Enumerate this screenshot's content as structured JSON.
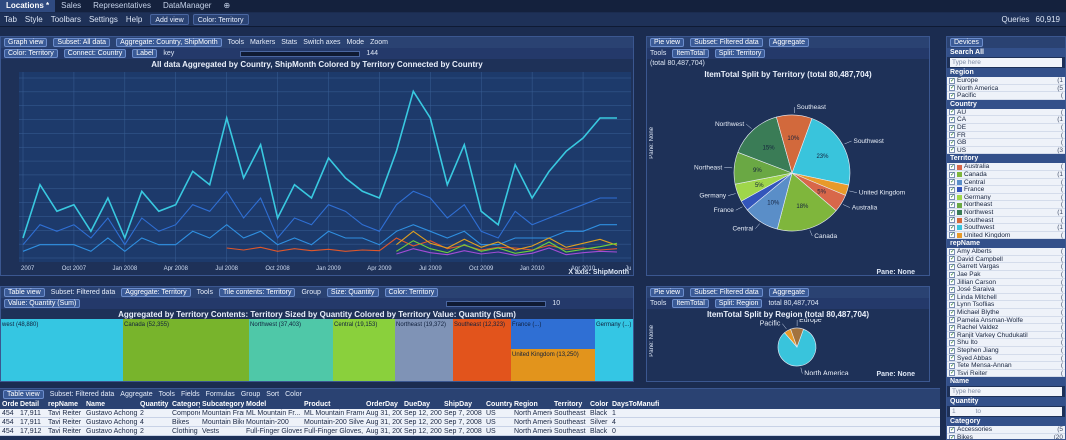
{
  "tabs": [
    {
      "label": "Locations *",
      "active": true
    },
    {
      "label": "Sales",
      "active": false
    },
    {
      "label": "Representatives",
      "active": false
    },
    {
      "label": "DataManager",
      "active": false
    }
  ],
  "menu": {
    "items": [
      "Tab",
      "Style",
      "Toolbars",
      "Settings",
      "Help"
    ],
    "add_view": "Add view",
    "color": "Color: Territory",
    "queries": "Queries",
    "queries_value": "60,919"
  },
  "graph": {
    "title": "Graph view",
    "subset": "Subset: All data",
    "aggregate": "Aggregate: Country, ShipMonth",
    "tools": [
      "Tools",
      "Markers",
      "Stats",
      "Switch axes",
      "Mode",
      "Zoom"
    ],
    "color": "Color: Territory",
    "connect": "Connect: Country",
    "label": "Label",
    "key": "key",
    "slider_value": "144",
    "header": "All data    Aggregated by Country, ShipMonth    Colored by Territory    Connected by Country",
    "x_axis_label": "X axis: ShipMonth",
    "x_ticks": [
      "Jul 2007",
      "Oct 2007",
      "Jan 2008",
      "Apr 2008",
      "Jul 2008",
      "Oct 2008",
      "Jan 2009",
      "Apr 2009",
      "Jul 2009",
      "Oct 2009",
      "Jan 2010",
      "Apr 2010",
      "Jul 2..."
    ]
  },
  "chart_data": [
    {
      "type": "line",
      "x": [
        "Jul 2007",
        "Aug 2007",
        "Sep 2007",
        "Oct 2007",
        "Nov 2007",
        "Dec 2007",
        "Jan 2008",
        "Feb 2008",
        "Mar 2008",
        "Apr 2008",
        "May 2008",
        "Jun 2008",
        "Jul 2008",
        "Aug 2008",
        "Sep 2008",
        "Oct 2008",
        "Nov 2008",
        "Dec 2008",
        "Jan 2009",
        "Feb 2009",
        "Mar 2009",
        "Apr 2009",
        "May 2009",
        "Jun 2009",
        "Jul 2009",
        "Aug 2009",
        "Sep 2009",
        "Oct 2009",
        "Nov 2009",
        "Dec 2009",
        "Jan 2010",
        "Feb 2010",
        "Mar 2010",
        "Apr 2010",
        "May 2010",
        "Jun 2010"
      ],
      "series": [
        {
          "color": "#39c9e0",
          "values": [
            3,
            11,
            7,
            8,
            4,
            9,
            3,
            10,
            7,
            8,
            13,
            11,
            21,
            12,
            17,
            6,
            11,
            9,
            15,
            12,
            10,
            9,
            16,
            25,
            21,
            11,
            17,
            7,
            5,
            14,
            9,
            13,
            16,
            18,
            21,
            21
          ]
        },
        {
          "color": "#2f6fd4",
          "values": [
            2,
            5,
            4,
            5,
            3,
            6,
            2,
            6,
            4,
            5,
            8,
            7,
            10,
            6,
            9,
            3,
            6,
            5,
            8,
            7,
            5,
            4,
            8,
            10,
            9,
            6,
            8,
            4,
            3,
            7,
            5,
            6,
            7,
            8,
            9,
            9
          ]
        },
        {
          "color": "#2f8fe0",
          "values": [
            1,
            2,
            2,
            2,
            1,
            3,
            1,
            3,
            2,
            2,
            4,
            3,
            5,
            3,
            4,
            2,
            3,
            2,
            4,
            3,
            3,
            2,
            4,
            5,
            4,
            3,
            4,
            2,
            2,
            3,
            3,
            3,
            4,
            4,
            5,
            5
          ]
        },
        {
          "color": "#e0572a",
          "values": [
            0,
            0,
            0,
            0,
            0,
            0,
            0,
            0,
            0,
            0,
            0,
            0,
            1.5,
            1.2,
            1.6,
            1.0,
            1.4,
            1.1,
            1.3,
            1.0,
            1.2,
            1.1,
            3.0,
            1.8,
            2.6,
            1.4,
            1.9,
            1.2,
            1.6,
            1.5,
            1.2,
            1.9,
            1.3,
            1.5,
            1.2,
            1.4
          ]
        },
        {
          "color": "#e0a020",
          "values": [
            0,
            0,
            0,
            0,
            0,
            0,
            0,
            0,
            0,
            0,
            0,
            0,
            0,
            0,
            0,
            0,
            0,
            0,
            0,
            0,
            0,
            0,
            2.0,
            4.0,
            2.2,
            1.5,
            2.8,
            1.6,
            2.4,
            1.2,
            1.8,
            3.0,
            1.6,
            2.2,
            2.8,
            1.9
          ]
        },
        {
          "color": "#6fd03a",
          "values": [
            0,
            0,
            0,
            0,
            0,
            0,
            0,
            0,
            0,
            0,
            0,
            0,
            0,
            0,
            0,
            0,
            0,
            0,
            0,
            0,
            0,
            0,
            1.0,
            2.6,
            1.4,
            0.8,
            2.0,
            1.0,
            1.5,
            0.7,
            1.1,
            2.4,
            0.9,
            1.3,
            1.7,
            2.2
          ]
        },
        {
          "color": "#a34cd6",
          "values": [
            0,
            0,
            0,
            0,
            0,
            0,
            0,
            0,
            0,
            0,
            0,
            0,
            0,
            0,
            0,
            0,
            0,
            0,
            0,
            0,
            0,
            0,
            0.6,
            1.4,
            0.8,
            0.5,
            1.1,
            0.6,
            0.9,
            0.4,
            0.7,
            1.5,
            0.5,
            0.8,
            1.0,
            0.9
          ]
        }
      ],
      "title": "All data    Aggregated by Country, ShipMonth    Colored by Territory    Connected by Country",
      "xlabel": "X axis: ShipMonth"
    },
    {
      "type": "pie",
      "title": "ItemTotal    Split by Territory (total 80,487,704)",
      "slices": [
        {
          "label": "Southwest",
          "value": 23,
          "color": "#39c4dc"
        },
        {
          "label": "United Kingdom",
          "value": 3,
          "color": "#e89a2a"
        },
        {
          "label": "Australia",
          "value": 5,
          "color": "#d8674a"
        },
        {
          "label": "Canada",
          "value": 18,
          "color": "#7fb63c"
        },
        {
          "label": "Central",
          "value": 10,
          "color": "#5a8ec8"
        },
        {
          "label": "France",
          "value": 3,
          "color": "#3355bb"
        },
        {
          "label": "Germany",
          "value": 5,
          "color": "#9fd64a"
        },
        {
          "label": "Northeast",
          "value": 9,
          "color": "#6aa844"
        },
        {
          "label": "Northwest",
          "value": 15,
          "color": "#3a7c56"
        },
        {
          "label": "Southeast",
          "value": 10,
          "color": "#d2693c"
        }
      ]
    },
    {
      "type": "pie",
      "title": "ItemTotal    Split by Region (total 80,487,704)",
      "slices": [
        {
          "label": "North America",
          "value": 83,
          "color": "#39c4dc"
        },
        {
          "label": "Pacific",
          "value": 6,
          "color": "#e89a2a"
        },
        {
          "label": "Europe",
          "value": 11,
          "color": "#a3733e"
        }
      ]
    }
  ],
  "pie1": {
    "title": "Pie view",
    "subset": "Subset: Filtered data",
    "aggregate": "Aggregate",
    "tools": "Tools",
    "value": "ItemTotal",
    "split": "Split: Territory",
    "total": "(total 80,487,704)",
    "header": "ItemTotal    Split by Territory (total 80,487,704)",
    "pane": "Pane: None",
    "side_label": "Pane: None",
    "slice_labels": [
      "23%",
      "18%",
      "10%",
      "10%",
      "15%",
      "9%"
    ]
  },
  "pie2": {
    "title": "Pie view",
    "subset": "Subset: Filtered data",
    "aggregate": "Aggregate",
    "tools": "Tools",
    "value": "ItemTotal",
    "split": "Split: Region",
    "total": "total 80,487,704",
    "header": "ItemTotal    Split by Region (total 80,487,704)",
    "pane": "Pane: None",
    "side_label": "Pane: None"
  },
  "tile": {
    "title": "Table view",
    "subset": "Subset: Filtered data",
    "aggregate": "Aggregate: Territory",
    "tools": "Tools",
    "contents": "Tile contents: Territory",
    "group": "Group",
    "size": "Size: Quantity",
    "color": "Color: Territory",
    "value": "Value: Quantity (Sum)",
    "slider_value": "10",
    "header": "Aggregated by Territory    Contents: Territory    Sized by Quantity    Colored by Territory    Value: Quantity (Sum)",
    "tiles": [
      {
        "label": "west (48,880)",
        "color": "#35c6e2"
      },
      {
        "label": "Canada (52,355)",
        "color": "#78b42c"
      },
      {
        "label": "Northwest (37,403)",
        "color": "#4fc8a8"
      },
      {
        "label": "Central (19,153)",
        "color": "#8ad03c"
      },
      {
        "label": "Northeast (19,372)",
        "color": "#7f93b6"
      },
      {
        "label": "Southeast (12,323)",
        "color": "#e2541c"
      },
      {
        "label": "France (...)",
        "color": "#2f6fd4"
      },
      {
        "label": "United Kingdom (13,250)",
        "color": "#e2941c"
      },
      {
        "label": "Germany (...)",
        "color": "#34c6e4"
      }
    ]
  },
  "table": {
    "title": "Table view",
    "subset": "Subset: Filtered data",
    "aggregate": "Aggregate",
    "tools": "Tools",
    "fields": "Fields",
    "formulas": "Formulas",
    "group": "Group",
    "sort": "Sort",
    "color": "Color",
    "columns": [
      "Order",
      "Detail",
      "repName",
      "Name",
      "Quantity",
      "Category",
      "Subcategory",
      "Model",
      "Product",
      "OrderDay",
      "DueDay",
      "ShipDay",
      "Country",
      "Region",
      "Territory",
      "Color",
      "DaysToManufi"
    ],
    "rows": [
      [
        "454",
        "17,911",
        "Tavi Reiter",
        "Gustavo Achong",
        "2",
        "Components",
        "Mountain Frames",
        "ML Mountain Fr...",
        "ML Mountain Frame - Black",
        "Aug 31, 2008",
        "Sep 12, 2008",
        "Sep 7, 2008",
        "US",
        "North America",
        "Southeast",
        "Black",
        "1"
      ],
      [
        "454",
        "17,911",
        "Tavi Reiter",
        "Gustavo Achong",
        "4",
        "Bikes",
        "Mountain Bikes",
        "Mountain-200",
        "Mountain-200 Silver, 38",
        "Aug 31, 2008",
        "Sep 12, 2008",
        "Sep 7, 2008",
        "US",
        "North America",
        "Southeast",
        "Silver",
        "4"
      ],
      [
        "454",
        "17,912",
        "Tavi Reiter",
        "Gustavo Achong",
        "2",
        "Clothing",
        "Vests",
        "Full-Finger Gloves",
        "Full-Finger Gloves, M",
        "Aug 31, 2008",
        "Sep 12, 2008",
        "Sep 7, 2008",
        "US",
        "North America",
        "Southeast",
        "Black",
        "0"
      ]
    ]
  },
  "sidebar": {
    "title": "Devices",
    "search_title": "Search All",
    "search_placeholder": "Type here",
    "sections": [
      {
        "name": "Region",
        "items": [
          {
            "label": "Europe",
            "count": "(1",
            "color": ""
          },
          {
            "label": "North America",
            "count": "(5",
            "color": ""
          },
          {
            "label": "Pacific",
            "count": "(",
            "color": ""
          }
        ]
      },
      {
        "name": "Country",
        "items": [
          {
            "label": "AU",
            "count": "(",
            "color": ""
          },
          {
            "label": "CA",
            "count": "(1",
            "color": ""
          },
          {
            "label": "DE",
            "count": "(",
            "color": ""
          },
          {
            "label": "FR",
            "count": "(",
            "color": ""
          },
          {
            "label": "GB",
            "count": "(",
            "color": ""
          },
          {
            "label": "US",
            "count": "(3",
            "color": ""
          }
        ]
      },
      {
        "name": "Territory",
        "items": [
          {
            "label": "Australia",
            "count": "(",
            "color": "#d8674a"
          },
          {
            "label": "Canada",
            "count": "(1",
            "color": "#7fb63c"
          },
          {
            "label": "Central",
            "count": "(",
            "color": "#5a8ec8"
          },
          {
            "label": "France",
            "count": "(",
            "color": "#3355bb"
          },
          {
            "label": "Germany",
            "count": "(",
            "color": "#9fd64a"
          },
          {
            "label": "Northeast",
            "count": "(",
            "color": "#6aa844"
          },
          {
            "label": "Northwest",
            "count": "(1",
            "color": "#3a7c56"
          },
          {
            "label": "Southeast",
            "count": "(",
            "color": "#d2693c"
          },
          {
            "label": "Southwest",
            "count": "(1",
            "color": "#39c4dc"
          },
          {
            "label": "United Kingdom",
            "count": "(",
            "color": "#e89a2a"
          }
        ]
      },
      {
        "name": "repName",
        "items": [
          {
            "label": "Amy Alberts",
            "count": "(",
            "color": ""
          },
          {
            "label": "David Campbell",
            "count": "(",
            "color": ""
          },
          {
            "label": "Garrett Vargas",
            "count": "(",
            "color": ""
          },
          {
            "label": "Jae Pak",
            "count": "(",
            "color": ""
          },
          {
            "label": "Jillian Carson",
            "count": "(",
            "color": ""
          },
          {
            "label": "José Saraiva",
            "count": "(",
            "color": ""
          },
          {
            "label": "Linda Mitchell",
            "count": "(",
            "color": ""
          },
          {
            "label": "Lynn Tsoflias",
            "count": "(",
            "color": ""
          },
          {
            "label": "Michael Blythe",
            "count": "(",
            "color": ""
          },
          {
            "label": "Pamela Ansman-Wolfe",
            "count": "(",
            "color": ""
          },
          {
            "label": "Rachel Valdez",
            "count": "(",
            "color": ""
          },
          {
            "label": "Ranjit Varkey Chudukatil",
            "count": "(",
            "color": ""
          },
          {
            "label": "Shu Ito",
            "count": "(",
            "color": ""
          },
          {
            "label": "Stephen Jiang",
            "count": "(",
            "color": ""
          },
          {
            "label": "Syed Abbas",
            "count": "(",
            "color": ""
          },
          {
            "label": "Tete Mensa-Annan",
            "count": "(",
            "color": ""
          },
          {
            "label": "Tsvi Reiter",
            "count": "(",
            "color": ""
          }
        ]
      }
    ],
    "name_section": "Name",
    "name_placeholder": "Type here",
    "quantity_section": "Quantity",
    "quantity_from": "1",
    "quantity_to": "to",
    "category_section": "Category",
    "category_items": [
      {
        "label": "Accessories",
        "count": "(5"
      },
      {
        "label": "Bikes",
        "count": "(20"
      },
      {
        "label": "Clothing",
        "count": "(1"
      },
      {
        "label": "Components",
        "count": "(1"
      }
    ]
  }
}
